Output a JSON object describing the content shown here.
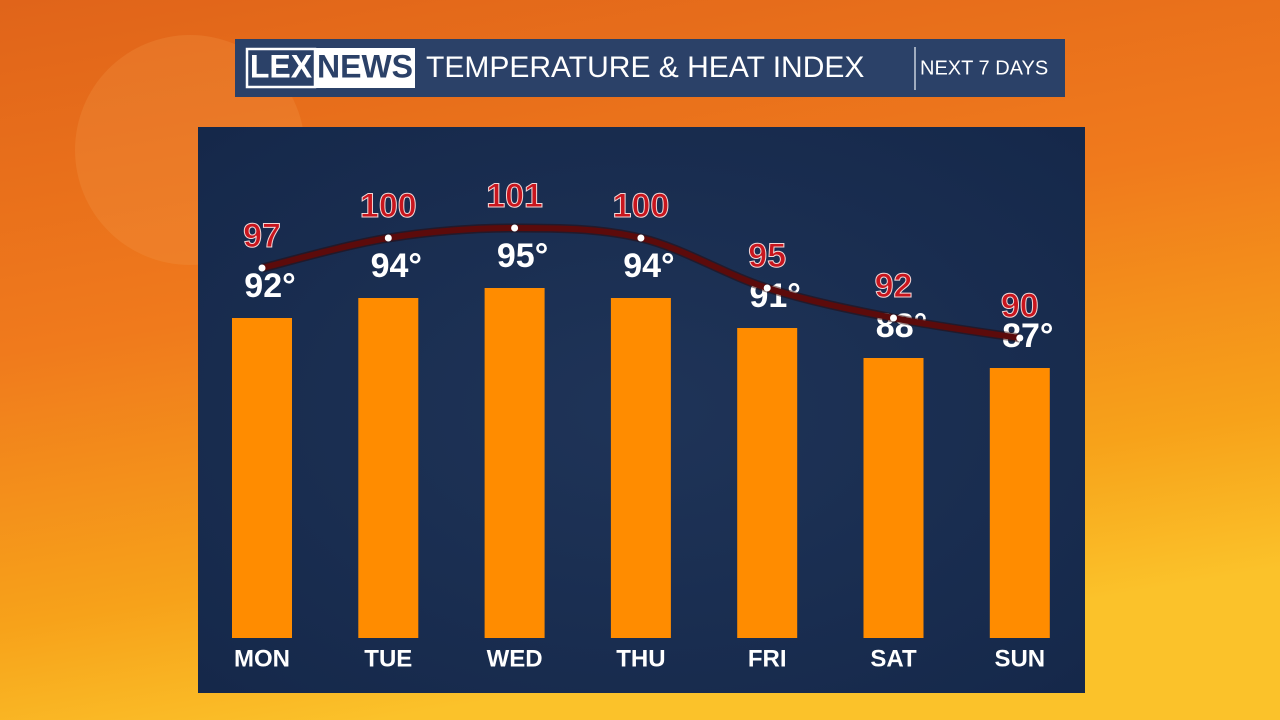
{
  "chart_data": {
    "type": "bar",
    "brand": [
      "LEX",
      "NEWS"
    ],
    "title": "TEMPERATURE & HEAT INDEX",
    "subtitle": "NEXT 7 DAYS",
    "categories": [
      "MON",
      "TUE",
      "WED",
      "THU",
      "FRI",
      "SAT",
      "SUN"
    ],
    "ylim": [
      60,
      110
    ],
    "series": [
      {
        "type": "bar",
        "color": "#ff8c00",
        "values": [
          92,
          94,
          95,
          94,
          91,
          88,
          87
        ],
        "value_labels": [
          "92°",
          "94°",
          "95°",
          "94°",
          "91°",
          "88°",
          "87°"
        ]
      },
      {
        "type": "line",
        "color": "#5c0b0b",
        "label_color": "#c8161e",
        "values": [
          97,
          100,
          101,
          100,
          95,
          92,
          90
        ]
      }
    ]
  }
}
